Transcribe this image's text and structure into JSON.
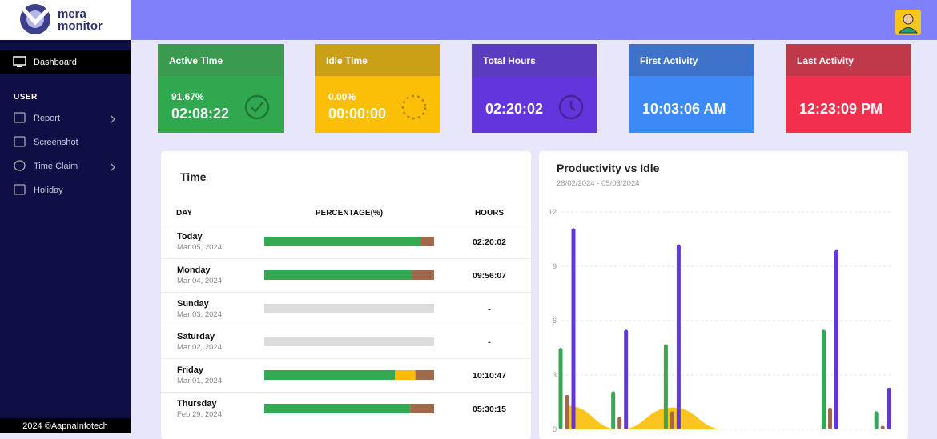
{
  "brand": {
    "line1": "mera",
    "line2": "monitor"
  },
  "nav": {
    "active": "Dashboard",
    "section": "USER",
    "items": [
      {
        "label": "Report",
        "chevron": true
      },
      {
        "label": "Screenshot",
        "chevron": false
      },
      {
        "label": "Time Claim",
        "chevron": true
      },
      {
        "label": "Holiday",
        "chevron": false
      }
    ]
  },
  "footer": "2024 ©AapnaInfotech",
  "cards": [
    {
      "title": "Active Time",
      "percent": "91.67%",
      "value": "02:08:22",
      "head": "#3a9a50",
      "body": "#2fa84f",
      "icon": "check"
    },
    {
      "title": "Idle Time",
      "percent": "0.00%",
      "value": "00:00:00",
      "head": "#c9a016",
      "body": "#fbbf07",
      "icon": "spinner"
    },
    {
      "title": "Total Hours",
      "value": "02:20:02",
      "head": "#5b3bbf",
      "body": "#6236dc",
      "icon": "clock"
    },
    {
      "title": "First Activity",
      "value": "10:03:06 AM",
      "head": "#3e73c9",
      "body": "#3d8af7"
    },
    {
      "title": "Last Activity",
      "value": "12:23:09 PM",
      "head": "#c0394b",
      "body": "#f2304d"
    }
  ],
  "time_table": {
    "title": "Time",
    "columns": [
      "DAY",
      "PERCENTAGE(%)",
      "HOURS"
    ],
    "bar_colors": [
      "#34a853",
      "#fbbc05",
      "#a0694b"
    ],
    "empty_color": "#dcdcdc",
    "rows": [
      {
        "day": "Today",
        "date": "Mar 05, 2024",
        "bar": [
          92,
          0,
          8
        ],
        "hours": "02:20:02"
      },
      {
        "day": "Monday",
        "date": "Mar 04, 2024",
        "bar": [
          87,
          0,
          13
        ],
        "hours": "09:56:07"
      },
      {
        "day": "Sunday",
        "date": "Mar 03, 2024",
        "bar": [
          0,
          0,
          0
        ],
        "hours": "-"
      },
      {
        "day": "Saturday",
        "date": "Mar 02, 2024",
        "bar": [
          0,
          0,
          0
        ],
        "hours": "-"
      },
      {
        "day": "Friday",
        "date": "Mar 01, 2024",
        "bar": [
          77,
          12,
          11
        ],
        "hours": "10:10:47"
      },
      {
        "day": "Thursday",
        "date": "Feb 29, 2024",
        "bar": [
          86,
          0,
          14
        ],
        "hours": "05:30:15"
      }
    ]
  },
  "chart_data": {
    "type": "bar",
    "title": "Productivity vs Idle",
    "subtitle": "28/02/2024 - 05/03/2024",
    "categories": [
      null,
      null,
      null,
      null,
      null,
      null,
      null
    ],
    "series": [
      {
        "color": "#34a853",
        "values": [
          4.5,
          2.1,
          4.7,
          0,
          0,
          5.5,
          1.0
        ]
      },
      {
        "color": "#a0694b",
        "values": [
          1.9,
          0.7,
          1.0,
          0,
          0,
          1.2,
          0.2
        ]
      },
      {
        "color": "#6236dc",
        "values": [
          11.1,
          5.5,
          10.2,
          0,
          0,
          9.9,
          2.3
        ]
      },
      {
        "type": "area",
        "color": "#fbbf07",
        "values": [
          1.3,
          0,
          1.2,
          0,
          0,
          0,
          0
        ]
      }
    ],
    "ylim": [
      0,
      12
    ],
    "yticks": [
      0,
      3,
      6,
      9,
      12
    ],
    "grid": true
  }
}
